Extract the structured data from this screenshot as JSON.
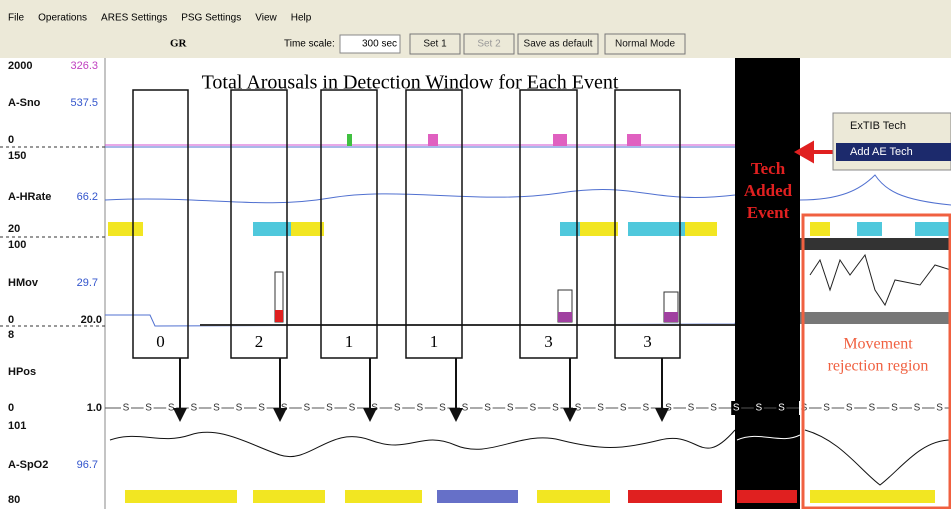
{
  "menu": [
    "File",
    "Operations",
    "ARES Settings",
    "PSG Settings",
    "View",
    "Help"
  ],
  "toolbar": {
    "gr": "GR",
    "time_scale_label": "Time scale:",
    "time_scale_value": "300 sec",
    "buttons": [
      "Set 1",
      "Set 2",
      "Save as default",
      "Normal Mode"
    ]
  },
  "channels": [
    {
      "top": "2000",
      "name": "A-Sno",
      "value": "537.5",
      "extra": "326.3",
      "bottom": "0"
    },
    {
      "top": "150",
      "name": "A-HRate",
      "value": "66.2",
      "bottom": "20"
    },
    {
      "top": "100",
      "name": "HMov",
      "value": "29.7",
      "bottom": "0",
      "bottom_value": "20.0"
    },
    {
      "top": "8",
      "name": "HPos",
      "bottom": "0",
      "bottom_value": "1.0"
    },
    {
      "top": "101",
      "name": "A-SpO2",
      "value": "96.7",
      "bottom": "80"
    }
  ],
  "position_marker": "S",
  "annotation": {
    "title": "Total Arousals in Detection Window for Each Event",
    "counts": [
      "0",
      "2",
      "1",
      "1",
      "3",
      "3"
    ],
    "tech_added_event": [
      "Tech",
      "Added",
      "Event"
    ],
    "movement_rejection": [
      "Movement",
      "rejection region"
    ]
  },
  "context_menu": [
    "ExTIB Tech",
    "Add AE Tech"
  ]
}
